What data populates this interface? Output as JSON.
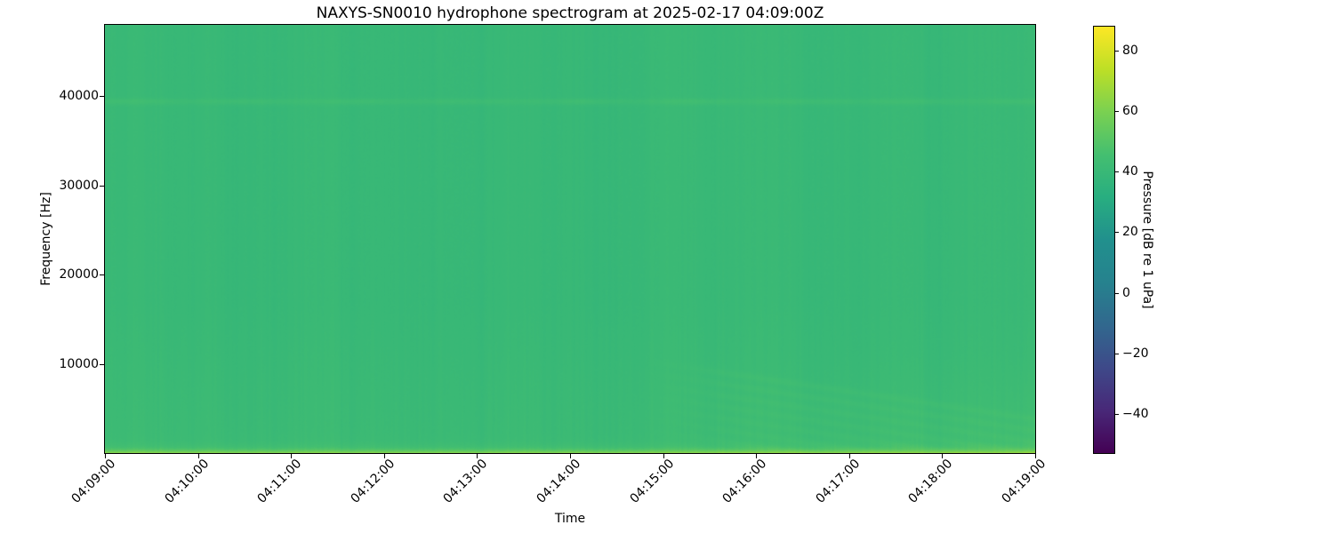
{
  "figure": {
    "title": "NAXYS-SN0010 hydrophone spectrogram at 2025-02-17 04:09:00Z",
    "xlabel": "Time",
    "ylabel": "Frequency [Hz]",
    "colorbar_label": "Pressure [dB re 1 uPa]"
  },
  "chart_data": {
    "type": "heatmap",
    "subtype": "spectrogram",
    "title": "NAXYS-SN0010 hydrophone spectrogram at 2025-02-17 04:09:00Z",
    "xlabel": "Time",
    "ylabel": "Frequency [Hz]",
    "colorbar_label": "Pressure [dB re 1 uPa]",
    "colormap": "viridis",
    "colormap_stops": [
      "#440154",
      "#482878",
      "#3e4989",
      "#31688e",
      "#26828e",
      "#21908d",
      "#28ae80",
      "#44bf70",
      "#7ad151",
      "#bddf26",
      "#fde725"
    ],
    "x_range": [
      "04:09:00",
      "04:19:00"
    ],
    "x_tick_labels": [
      "04:09:00",
      "04:10:00",
      "04:11:00",
      "04:12:00",
      "04:13:00",
      "04:14:00",
      "04:15:00",
      "04:16:00",
      "04:17:00",
      "04:18:00",
      "04:19:00"
    ],
    "y_range_hz": [
      0,
      48000
    ],
    "y_tick_values_hz": [
      10000,
      20000,
      30000,
      40000
    ],
    "y_tick_labels": [
      "10000",
      "20000",
      "30000",
      "40000"
    ],
    "color_range_db": [
      -53,
      88
    ],
    "colorbar_tick_values_db": [
      80,
      60,
      40,
      20,
      0,
      -20,
      -40
    ],
    "colorbar_tick_labels": [
      "80",
      "60",
      "40",
      "20",
      "0",
      "−20",
      "−40"
    ],
    "grid": false,
    "legend": false,
    "background_level_db": 40,
    "features": {
      "tonal_line": {
        "freq_hz": 39400,
        "boost_db": 3.2,
        "bandwidth_hz": 500,
        "extent": "entire recording"
      },
      "low_freq_elevated_noise": {
        "below_hz": 17000,
        "boost_db": 1.9
      },
      "bottom_bright_band": {
        "decay_hz": 360,
        "boost_db": 22,
        "peak_level_db": 62
      },
      "diagonal_striations": {
        "start_time_frac": 0.58,
        "start_label": "~04:15:00",
        "top_hz": 10300,
        "spacing_hz": 1280,
        "sweep_hz_per_window": 15500,
        "boost_db": 2.0,
        "direction": "descending"
      }
    }
  }
}
